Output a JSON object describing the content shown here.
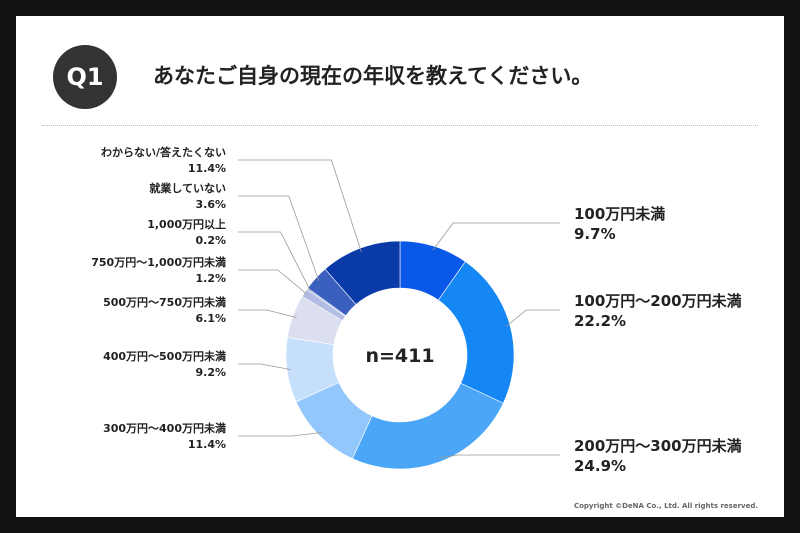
{
  "header": {
    "badge": "Q1",
    "question": "あなたご自身の現在の年収を教えてください。"
  },
  "footer": {
    "copyright": "Copyright ©DeNA Co., Ltd. All rights reserved."
  },
  "chart_data": {
    "type": "pie",
    "variant": "donut",
    "center_label": "n=411",
    "slices": [
      {
        "label": "100万円未満",
        "value_label": "9.7%",
        "value": 9.7,
        "color": "#0a58e8"
      },
      {
        "label": "100万円〜200万円未満",
        "value_label": "22.2%",
        "value": 22.2,
        "color": "#1587f5"
      },
      {
        "label": "200万円〜300万円未満",
        "value_label": "24.9%",
        "value": 24.9,
        "color": "#4ba6f8"
      },
      {
        "label": "300万円〜400万円未満",
        "value_label": "11.4%",
        "value": 11.4,
        "color": "#92c7fb"
      },
      {
        "label": "400万円〜500万円未満",
        "value_label": "9.2%",
        "value": 9.2,
        "color": "#c6e0fb"
      },
      {
        "label": "500万円〜750万円未満",
        "value_label": "6.1%",
        "value": 6.1,
        "color": "#dcdff0"
      },
      {
        "label": "750万円〜1,000万円未満",
        "value_label": "1.2%",
        "value": 1.2,
        "color": "#b3bde4"
      },
      {
        "label": "1,000万円以上",
        "value_label": "0.2%",
        "value": 0.2,
        "color": "#8fa0d8"
      },
      {
        "label": "就業していない",
        "value_label": "3.6%",
        "value": 3.6,
        "color": "#3a5fbf"
      },
      {
        "label": "わからない/答えたくない",
        "value_label": "11.4%",
        "value": 11.4,
        "color": "#0a3aa8"
      }
    ]
  }
}
